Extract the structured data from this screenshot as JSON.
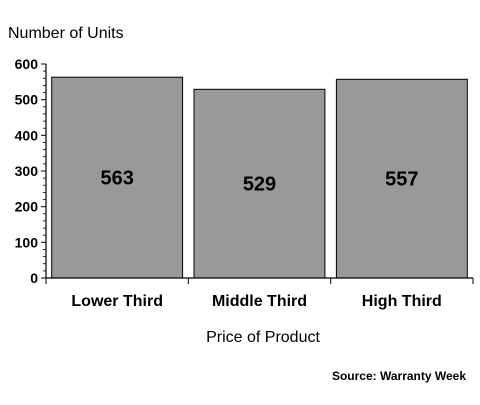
{
  "chart_data": {
    "type": "bar",
    "title": "",
    "ylabel": "Number of Units",
    "xlabel": "Price of Product",
    "categories": [
      "Lower Third",
      "Middle Third",
      "High Third"
    ],
    "values": [
      563,
      529,
      557
    ],
    "value_labels": [
      "563",
      "529",
      "557"
    ],
    "ylim": [
      0,
      600
    ],
    "yticks": [
      "0",
      "100",
      "200",
      "300",
      "400",
      "500",
      "600"
    ],
    "grid": false,
    "legend": "none",
    "source": "Source: Warranty Week",
    "colors": {
      "bar_fill": "#999999",
      "bar_stroke": "#000000",
      "axis": "#000000",
      "text": "#000000"
    }
  }
}
